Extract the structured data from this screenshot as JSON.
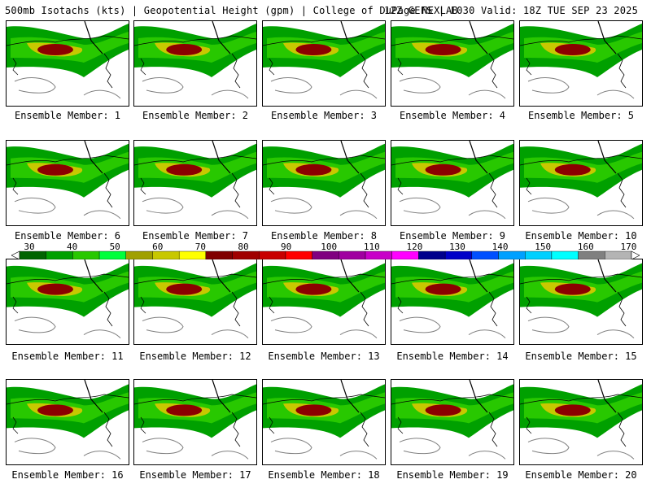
{
  "header": {
    "title": "500mb Isotachs (kts) | Geopotential Height (gpm) | College of DuPage NEXLAB",
    "run_info": "12Z GEFS | F030 Valid: 18Z TUE SEP 23 2025"
  },
  "members": [
    "Ensemble Member: 1",
    "Ensemble Member: 2",
    "Ensemble Member: 3",
    "Ensemble Member: 4",
    "Ensemble Member: 5",
    "Ensemble Member: 6",
    "Ensemble Member: 7",
    "Ensemble Member: 8",
    "Ensemble Member: 9",
    "Ensemble Member: 10",
    "Ensemble Member: 11",
    "Ensemble Member: 12",
    "Ensemble Member: 13",
    "Ensemble Member: 14",
    "Ensemble Member: 15",
    "Ensemble Member: 16",
    "Ensemble Member: 17",
    "Ensemble Member: 18",
    "Ensemble Member: 19",
    "Ensemble Member: 20"
  ],
  "colorbar": {
    "tick_labels": [
      "30",
      "40",
      "50",
      "60",
      "70",
      "80",
      "90",
      "100",
      "110",
      "120",
      "130",
      "140",
      "150",
      "160",
      "170"
    ],
    "colors": [
      "#006400",
      "#00a000",
      "#28c800",
      "#00ff3c",
      "#a0a000",
      "#c8c800",
      "#ffff00",
      "#800000",
      "#a00000",
      "#c80000",
      "#ff0000",
      "#800080",
      "#a000a0",
      "#c800c8",
      "#ff00ff",
      "#00008c",
      "#0000c8",
      "#0050ff",
      "#00a0ff",
      "#00d0ff",
      "#00ffff",
      "#808080",
      "#b4b4b4"
    ]
  },
  "colors": {
    "jet_core": "#8b0000",
    "jet_band1": "#00a000",
    "jet_band2": "#28c800",
    "jet_band3": "#c8c800",
    "coast": "#000000",
    "height_contour": "#808080"
  }
}
